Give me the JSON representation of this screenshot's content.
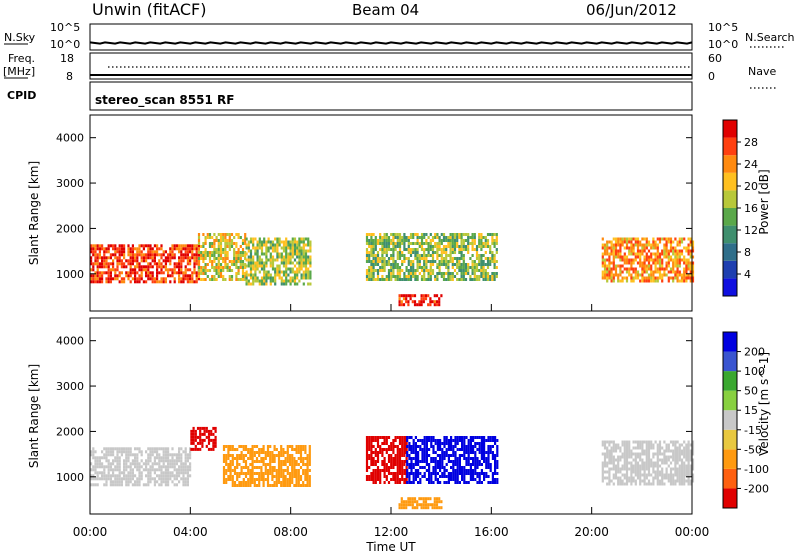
{
  "header": {
    "radar": "Unwin (fitACF)",
    "beam": "Beam 04",
    "date": "06/Jun/2012"
  },
  "strip1": {
    "left_label": "N.Sky",
    "left_top": "10^5",
    "left_bottom": "10^0",
    "right_label": "N.Search",
    "right_top": "10^5",
    "right_bottom": "10^0"
  },
  "strip2": {
    "left_label_1": "Freq.",
    "left_label_2": "[MHz]",
    "left_top": "18",
    "left_bottom": "8",
    "right_label": "Nave",
    "right_top": "60",
    "right_bottom": "0"
  },
  "strip3": {
    "left_label": "CPID",
    "text": "stereo_scan 8551 RF"
  },
  "colors": {
    "power": [
      "#1010e0",
      "#1e3fb0",
      "#2f6e8a",
      "#3f8f6e",
      "#5aa84a",
      "#b8c83a",
      "#ffc020",
      "#ff8a10",
      "#ff4010",
      "#e00000"
    ],
    "velocity": [
      "#0000e0",
      "#3a55d0",
      "#3aa830",
      "#88d040",
      "#c8c8c8",
      "#e8c840",
      "#ff9a10",
      "#ff6010",
      "#e00000"
    ]
  },
  "chart_data": [
    {
      "type": "heatmap",
      "title": "Power",
      "ylabel": "Slant Range [km]",
      "colorbar_label": "Power [dB]",
      "colorbar_ticks": [
        "4",
        "8",
        "12",
        "16",
        "20",
        "24",
        "28"
      ],
      "y_ticks": [
        "1000",
        "2000",
        "3000",
        "4000"
      ],
      "ylim": [
        180,
        4500
      ],
      "clim": [
        0,
        30
      ],
      "regions": [
        {
          "t0": 0.0,
          "t1": 4.3,
          "r0": 800,
          "r1": 1650,
          "value": 26
        },
        {
          "t0": 4.3,
          "t1": 6.2,
          "r0": 850,
          "r1": 1900,
          "value": 18
        },
        {
          "t0": 6.2,
          "t1": 8.8,
          "r0": 800,
          "r1": 1800,
          "value": 16
        },
        {
          "t0": 11.0,
          "t1": 16.2,
          "r0": 900,
          "r1": 1900,
          "value": 15
        },
        {
          "t0": 12.3,
          "t1": 14.0,
          "r0": 300,
          "r1": 550,
          "value": 28
        },
        {
          "t0": 20.4,
          "t1": 24.0,
          "r0": 850,
          "r1": 1800,
          "value": 22
        }
      ]
    },
    {
      "type": "heatmap",
      "title": "Velocity",
      "xlabel": "Time UT",
      "ylabel": "Slant Range [km]",
      "colorbar_label": "Velocity [m s^-1]",
      "colorbar_ticks": [
        "200",
        "100",
        "50",
        "15",
        "-15",
        "-50",
        "-100",
        "-200"
      ],
      "x_ticks": [
        "00:00",
        "04:00",
        "08:00",
        "12:00",
        "16:00",
        "20:00",
        "00:00"
      ],
      "y_ticks": [
        "1000",
        "2000",
        "3000",
        "4000"
      ],
      "xlim": [
        0,
        24
      ],
      "ylim": [
        180,
        4500
      ],
      "regions": [
        {
          "t0": 0.0,
          "t1": 4.0,
          "r0": 800,
          "r1": 1650,
          "value": 0
        },
        {
          "t0": 4.0,
          "t1": 5.0,
          "r0": 1600,
          "r1": 2100,
          "value": -200
        },
        {
          "t0": 5.3,
          "t1": 8.8,
          "r0": 800,
          "r1": 1700,
          "value": -60
        },
        {
          "t0": 11.0,
          "t1": 12.6,
          "r0": 900,
          "r1": 1900,
          "value": -200
        },
        {
          "t0": 12.6,
          "t1": 16.2,
          "r0": 900,
          "r1": 1900,
          "value": 200
        },
        {
          "t0": 12.3,
          "t1": 14.0,
          "r0": 300,
          "r1": 550,
          "value": -60
        },
        {
          "t0": 20.4,
          "t1": 24.0,
          "r0": 850,
          "r1": 1800,
          "value": 0
        }
      ]
    }
  ]
}
